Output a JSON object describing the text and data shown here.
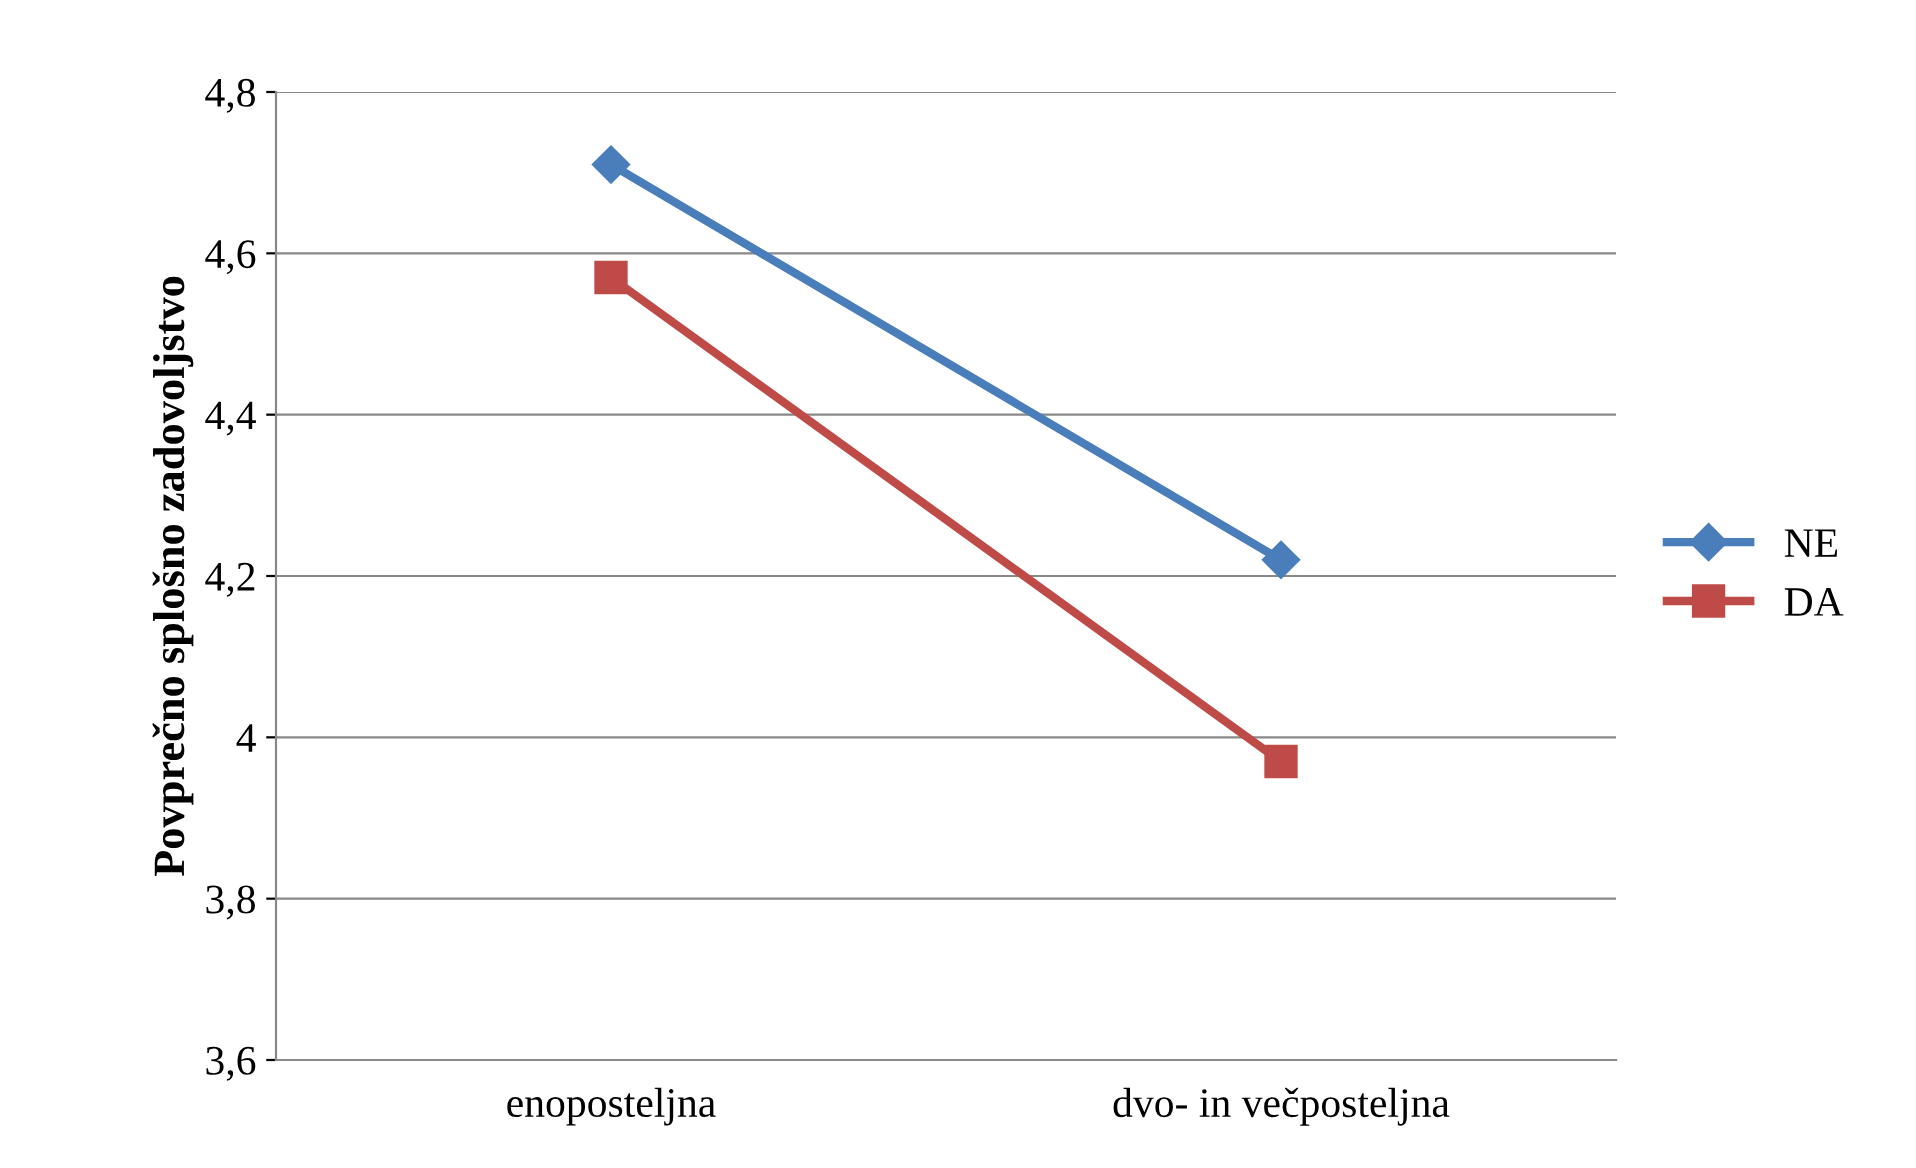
{
  "chart_data": {
    "type": "line",
    "ylabel": "Povprečno splošno zadovoljstvo",
    "categories": [
      "enoposteljna",
      "dvo- in večposteljna"
    ],
    "series": [
      {
        "name": "NE",
        "color": "#4a7ebb",
        "marker": "diamond",
        "values": [
          4.71,
          4.22
        ]
      },
      {
        "name": "DA",
        "color": "#be4b48",
        "marker": "square",
        "values": [
          4.57,
          3.97
        ]
      }
    ],
    "ylim": [
      3.6,
      4.8
    ],
    "yticks": [
      {
        "value": 3.6,
        "label": "3,6"
      },
      {
        "value": 3.8,
        "label": "3,8"
      },
      {
        "value": 4,
        "label": "4"
      },
      {
        "value": 4.2,
        "label": "4,2"
      },
      {
        "value": 4.4,
        "label": "4,4"
      },
      {
        "value": 4.6,
        "label": "4,6"
      },
      {
        "value": 4.8,
        "label": "4,8"
      }
    ],
    "grid": "y",
    "legend": "right",
    "line_style": "solid"
  }
}
